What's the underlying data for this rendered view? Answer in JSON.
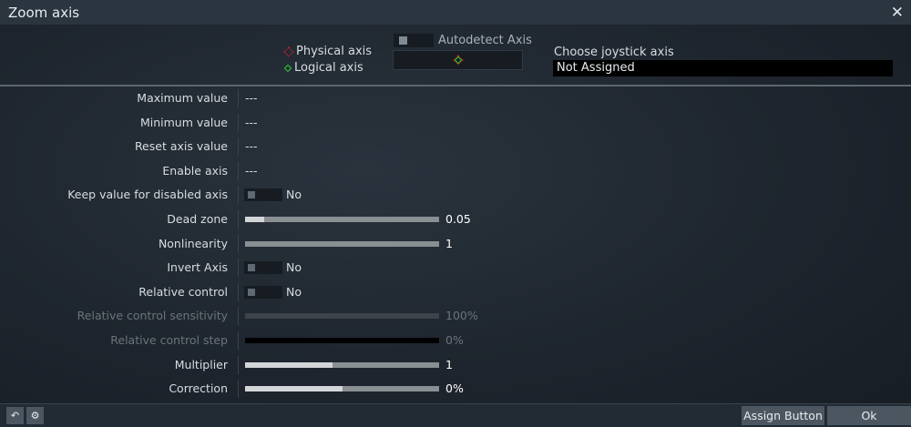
{
  "title": "Zoom axis",
  "legend": {
    "physical": "Physical axis",
    "logical": "Logical axis",
    "physical_color": "#e0231e",
    "logical_color": "#2ed12e"
  },
  "autodetect": {
    "label": "Autodetect Axis",
    "on": false
  },
  "joystick": {
    "label": "Choose joystick axis",
    "value": "Not Assigned"
  },
  "rows": [
    {
      "label": "Maximum value",
      "value": "---"
    },
    {
      "label": "Minimum value",
      "value": "---"
    },
    {
      "label": "Reset axis value",
      "value": "---"
    },
    {
      "label": "Enable axis",
      "value": "---"
    },
    {
      "label": "Keep value for disabled axis",
      "value": "No"
    },
    {
      "label": "Dead zone",
      "value": "0.05",
      "fill_percent": 10
    },
    {
      "label": "Nonlinearity",
      "value": "1",
      "fill_percent": 0
    },
    {
      "label": "Invert Axis",
      "value": "No"
    },
    {
      "label": "Relative control",
      "value": "No"
    },
    {
      "label": "Relative control sensitivity",
      "value": "100%",
      "fill_percent": 100,
      "disabled": true
    },
    {
      "label": "Relative control step",
      "value": "0%",
      "fill_percent": 0,
      "disabled": true
    },
    {
      "label": "Multiplier",
      "value": "1",
      "fill_percent": 45
    },
    {
      "label": "Correction",
      "value": "0%",
      "fill_percent": 50
    }
  ],
  "footer": {
    "assign": "Assign Button",
    "ok": "Ok",
    "icons": [
      "reset-icon",
      "axis-settings-icon"
    ]
  }
}
